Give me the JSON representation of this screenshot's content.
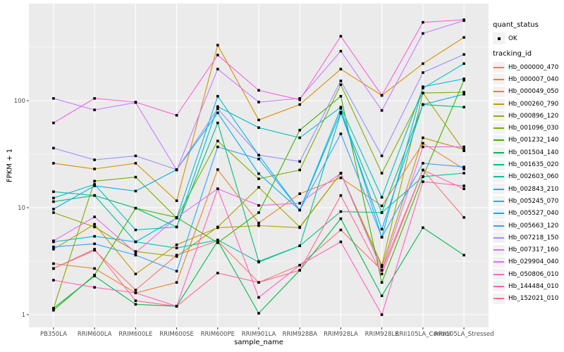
{
  "chart_data": {
    "type": "line",
    "xlabel": "sample_name",
    "ylabel": "FPKM + 1",
    "y_scale": "log10",
    "y_ticks": [
      1,
      10,
      100
    ],
    "y_minor_ticks": [
      3.162,
      31.62,
      316.2
    ],
    "ylim": [
      1,
      800
    ],
    "grid": true,
    "panel_bg": "#EBEBEB",
    "grid_color": "#FFFFFF",
    "tick_label_color": "#4D4D4D",
    "tick_mark_color": "#333333",
    "point_color": "#000000",
    "legend_position": "right",
    "legend_key_bg": "#F2F2F2",
    "categories": [
      "PB350LA",
      "RRIM600LA",
      "RRIM600LE",
      "RRIM600SE",
      "RRIM600PE",
      "RRIM901LA",
      "RRIM928BA",
      "RRIM928LA",
      "RRIM928LE",
      "RRII105LA_Control",
      "RRII105LA_Stressed"
    ],
    "series": [
      {
        "name": "Hb_000000_470",
        "color": "#F8766D",
        "values": [
          2.7,
          4.0,
          1.7,
          3.6,
          4.9,
          2.0,
          2.9,
          6.2,
          2.6,
          22.5,
          8.1
        ]
      },
      {
        "name": "Hb_000007_040",
        "color": "#EA8331",
        "values": [
          3.0,
          2.7,
          1.6,
          2.0,
          22.7,
          7.2,
          13.5,
          19.0,
          10.4,
          40.0,
          23.0
        ]
      },
      {
        "name": "Hb_000049_050",
        "color": "#D89000",
        "values": [
          26.0,
          23.0,
          26.0,
          11.6,
          330.0,
          66.0,
          92.0,
          197.0,
          112.0,
          222.0,
          390.0
        ]
      },
      {
        "name": "Hb_000260_790",
        "color": "#C09B00",
        "values": [
          4.1,
          7.0,
          2.4,
          4.5,
          6.5,
          6.8,
          6.5,
          21.0,
          2.8,
          45.0,
          35.0
        ]
      },
      {
        "name": "Hb_000896_120",
        "color": "#A3A500",
        "values": [
          9.0,
          6.6,
          3.9,
          3.5,
          6.6,
          15.5,
          6.6,
          21.0,
          2.9,
          118.0,
          34.0
        ]
      },
      {
        "name": "Hb_001096_030",
        "color": "#7CAE00",
        "values": [
          1.15,
          17.7,
          19.3,
          8.0,
          42.0,
          18.6,
          22.5,
          141.0,
          21.0,
          118.0,
          120.0
        ]
      },
      {
        "name": "Hb_001232_140",
        "color": "#39B600",
        "values": [
          1.1,
          2.35,
          9.9,
          8.1,
          4.7,
          9.0,
          53.0,
          110.0,
          2.0,
          19.5,
          155.0
        ]
      },
      {
        "name": "Hb_001504_140",
        "color": "#00BB4E",
        "values": [
          1.15,
          2.3,
          1.25,
          1.2,
          4.9,
          1.03,
          2.6,
          7.9,
          1.5,
          6.5,
          3.6
        ]
      },
      {
        "name": "Hb_001635_020",
        "color": "#00BF7D",
        "values": [
          11.4,
          13.0,
          9.9,
          6.6,
          62.0,
          3.15,
          4.4,
          9.2,
          9.0,
          92.0,
          87.0
        ]
      },
      {
        "name": "Hb_002603_060",
        "color": "#00C1A3",
        "values": [
          14.1,
          13.0,
          4.8,
          4.2,
          5.0,
          3.1,
          4.4,
          76.0,
          9.0,
          19.5,
          21.0
        ]
      },
      {
        "name": "Hb_002843_210",
        "color": "#00BFC4",
        "values": [
          12.3,
          16.5,
          6.2,
          6.6,
          88.0,
          56.0,
          45.0,
          87.0,
          12.5,
          131.0,
          222.0
        ]
      },
      {
        "name": "Hb_005245_070",
        "color": "#00BAE0",
        "values": [
          4.8,
          5.4,
          4.8,
          8.0,
          110.0,
          31.0,
          9.5,
          85.0,
          5.3,
          135.0,
          160.0
        ]
      },
      {
        "name": "Hb_005527_040",
        "color": "#00B0F6",
        "values": [
          9.7,
          16.0,
          14.3,
          22.7,
          77.0,
          20.8,
          9.5,
          78.0,
          6.3,
          92.0,
          115.0
        ]
      },
      {
        "name": "Hb_005663_120",
        "color": "#35A2FF",
        "values": [
          4.3,
          4.6,
          3.6,
          2.55,
          37.0,
          28.5,
          9.5,
          49.0,
          5.3,
          26.0,
          24.0
        ]
      },
      {
        "name": "Hb_007218_150",
        "color": "#9590FF",
        "values": [
          36.0,
          28.0,
          30.5,
          22.7,
          84.0,
          31.0,
          27.0,
          153.0,
          30.5,
          183.0,
          270.0
        ]
      },
      {
        "name": "Hb_007317_160",
        "color": "#C77CFF",
        "values": [
          105.0,
          82.0,
          96.0,
          22.5,
          197.0,
          97.0,
          105.0,
          290.0,
          81.0,
          425.0,
          560.0
        ]
      },
      {
        "name": "Hb_029904_040",
        "color": "#E76BF3",
        "values": [
          4.9,
          8.2,
          3.8,
          8.1,
          15.0,
          10.5,
          11.0,
          21.0,
          2.6,
          37.0,
          37.0
        ]
      },
      {
        "name": "Hb_050806_010",
        "color": "#FA62DB",
        "values": [
          62.0,
          105.0,
          97.0,
          73.0,
          267.0,
          125.0,
          102.0,
          400.0,
          112.0,
          540.0,
          570.0
        ]
      },
      {
        "name": "Hb_144484_010",
        "color": "#FF62BC",
        "values": [
          2.1,
          1.8,
          1.6,
          1.2,
          15.0,
          1.45,
          2.9,
          4.8,
          1.0,
          17.5,
          16.0
        ]
      },
      {
        "name": "Hb_152021_010",
        "color": "#FF6A98",
        "values": [
          2.7,
          4.1,
          1.35,
          1.2,
          2.45,
          2.0,
          2.6,
          13.0,
          2.4,
          22.5,
          15.0
        ]
      }
    ],
    "legend": {
      "quant_title": "quant_status",
      "quant_item": "OK",
      "tracking_title": "tracking_id"
    }
  }
}
